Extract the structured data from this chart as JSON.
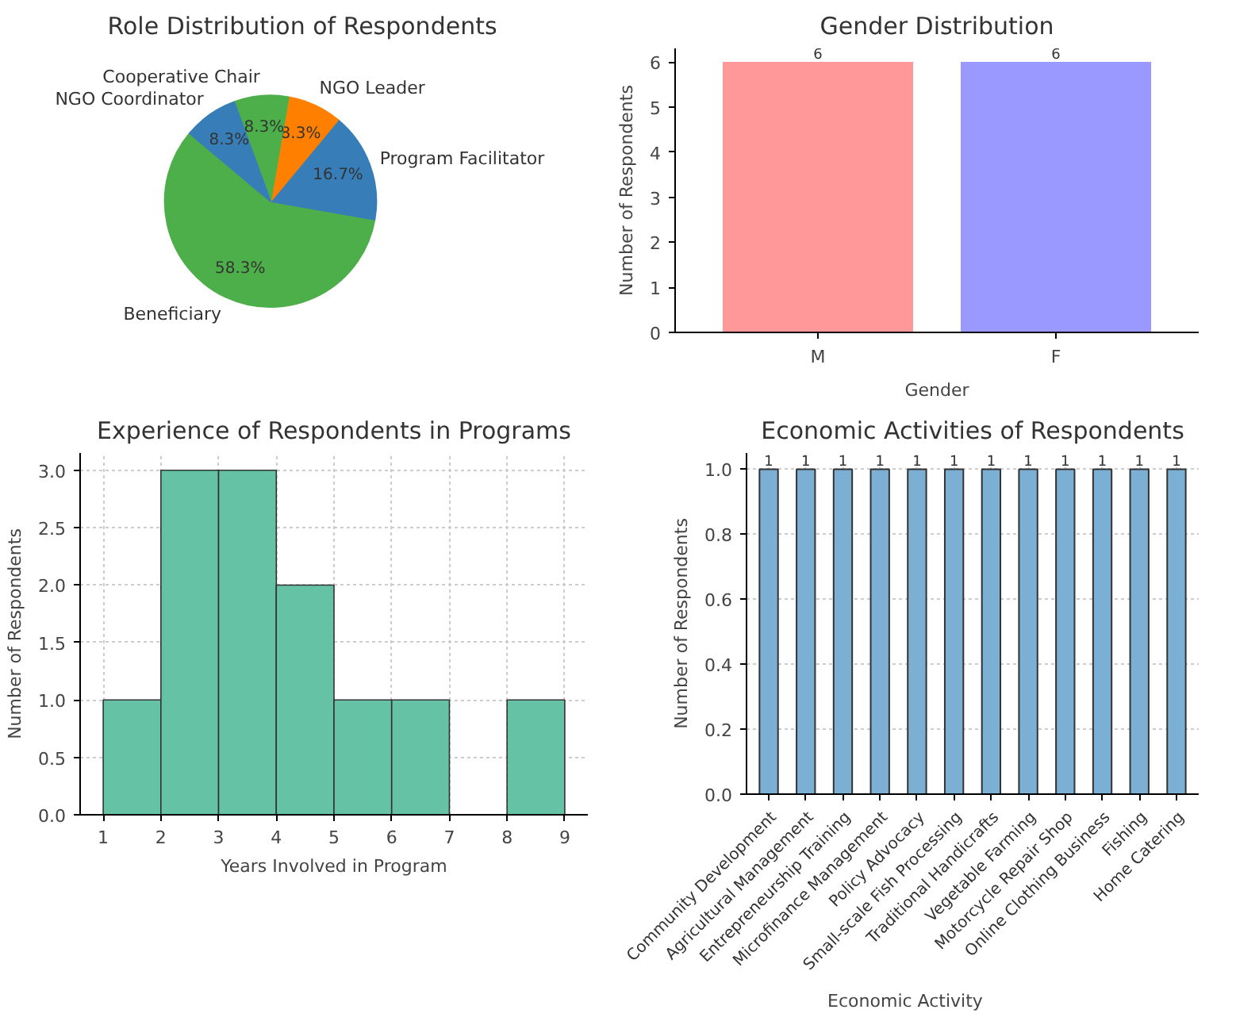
{
  "chart_data": [
    {
      "type": "pie",
      "title": "Role Distribution of Respondents",
      "categories": [
        "Beneficiary",
        "Program Facilitator",
        "NGO Leader",
        "Cooperative Chair",
        "NGO Coordinator"
      ],
      "values": [
        58.3,
        16.7,
        8.3,
        8.3,
        8.3
      ],
      "colors": [
        "#4daf4a",
        "#377eb8",
        "#ff7f00",
        "#4daf4a",
        "#377eb8"
      ],
      "value_labels": [
        "58.3%",
        "16.7%",
        "8.3%",
        "8.3%",
        "8.3%"
      ]
    },
    {
      "type": "bar",
      "title": "Gender Distribution",
      "xlabel": "Gender",
      "ylabel": "Number of Respondents",
      "categories": [
        "M",
        "F"
      ],
      "values": [
        6,
        6
      ],
      "colors": [
        "#ff9999",
        "#9999ff"
      ],
      "ylim": [
        0,
        6.3
      ],
      "yticks": [
        0,
        1,
        2,
        3,
        4,
        5,
        6
      ],
      "data_labels": true,
      "grid": false
    },
    {
      "type": "histogram",
      "title": "Experience of Respondents in Programs",
      "xlabel": "Years Involved in Program",
      "ylabel": "Number of Respondents",
      "bins": [
        1,
        2,
        3,
        4,
        5,
        6,
        7,
        8,
        9
      ],
      "values": [
        1,
        3,
        3,
        2,
        1,
        1,
        0,
        1
      ],
      "color": "#66c2a5",
      "xlim": [
        0.6,
        9.4
      ],
      "xticks": [
        1,
        2,
        3,
        4,
        5,
        6,
        7,
        8,
        9
      ],
      "ylim": [
        0,
        3.15
      ],
      "yticks": [
        {
          "value": 0,
          "label": "0.0"
        },
        {
          "value": 0.5,
          "label": "0.5"
        },
        {
          "value": 1,
          "label": "1.0"
        },
        {
          "value": 1.5,
          "label": "1.5"
        },
        {
          "value": 2,
          "label": "2.0"
        },
        {
          "value": 2.5,
          "label": "2.5"
        },
        {
          "value": 3,
          "label": "3.0"
        }
      ],
      "grid": true
    },
    {
      "type": "bar",
      "title": "Economic Activities of Respondents",
      "xlabel": "Economic Activity",
      "ylabel": "Number of Respondents",
      "categories": [
        "Community Development",
        "Agricultural Management",
        "Entrepreneurship Training",
        "Microfinance Management",
        "Policy Advocacy",
        "Small-scale Fish Processing",
        "Traditional Handicrafts",
        "Vegetable Farming",
        "Motorcycle Repair Shop",
        "Online Clothing Business",
        "Fishing",
        "Home Catering"
      ],
      "values": [
        1,
        1,
        1,
        1,
        1,
        1,
        1,
        1,
        1,
        1,
        1,
        1
      ],
      "color": "#7bafd4",
      "ylim": [
        0,
        1.05
      ],
      "yticks": [
        {
          "value": 0,
          "label": "0.0"
        },
        {
          "value": 0.2,
          "label": "0.2"
        },
        {
          "value": 0.4,
          "label": "0.4"
        },
        {
          "value": 0.6,
          "label": "0.6"
        },
        {
          "value": 0.8,
          "label": "0.8"
        },
        {
          "value": 1,
          "label": "1.0"
        }
      ],
      "data_labels": true,
      "grid": true
    }
  ]
}
